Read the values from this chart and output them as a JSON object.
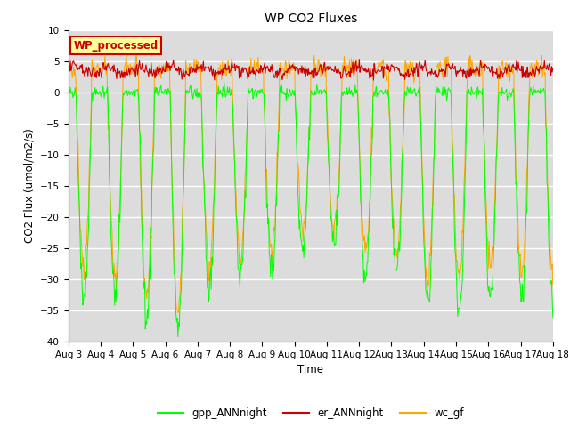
{
  "title": "WP CO2 Fluxes",
  "ylabel": "CO2 Flux (umol/m2/s)",
  "xlabel": "Time",
  "ylim": [
    -40,
    10
  ],
  "yticks": [
    10,
    5,
    0,
    -5,
    -10,
    -15,
    -20,
    -25,
    -30,
    -35,
    -40
  ],
  "xtick_labels": [
    "Aug 3",
    "Aug 4",
    "Aug 5",
    "Aug 6",
    "Aug 7",
    "Aug 8",
    "Aug 9",
    "Aug 10",
    "Aug 11",
    "Aug 12",
    "Aug 13",
    "Aug 14",
    "Aug 15",
    "Aug 16",
    "Aug 17",
    "Aug 18"
  ],
  "bg_color": "#dcdcdc",
  "fig_color": "#ffffff",
  "grid_color": "#ffffff",
  "gpp_color": "#00ff00",
  "er_color": "#cc0000",
  "wc_color": "#ffa500",
  "legend_labels": [
    "gpp_ANNnight",
    "er_ANNnight",
    "wc_gf"
  ],
  "annotation_text": "WP_processed",
  "annotation_bg": "#ffff99",
  "annotation_edge": "#cc0000",
  "annotation_text_color": "#cc0000",
  "n_days": 15.5,
  "pts_per_day": 48,
  "gpp_depths": [
    33,
    32,
    36,
    38,
    32,
    29,
    29,
    25,
    25,
    30,
    30,
    35,
    35,
    33,
    34
  ],
  "wc_depths": [
    28,
    30,
    33,
    35,
    28,
    26,
    26,
    22,
    22,
    26,
    26,
    30,
    30,
    28,
    29
  ],
  "er_mean": 3.5,
  "er_std": 0.5,
  "day_start": 0.25,
  "day_end": 0.75
}
